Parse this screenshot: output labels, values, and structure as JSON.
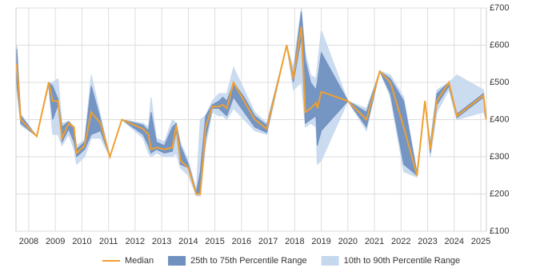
{
  "chart_data": {
    "type": "percentile-band",
    "x": [
      2007.55,
      2007.7,
      2008.3,
      2008.75,
      2008.9,
      2009.1,
      2009.25,
      2009.5,
      2009.7,
      2009.8,
      2010.1,
      2010.35,
      2010.7,
      2011.05,
      2011.5,
      2012.3,
      2012.5,
      2012.6,
      2012.8,
      2013.1,
      2013.4,
      2013.55,
      2013.7,
      2014.0,
      2014.3,
      2014.45,
      2014.65,
      2014.9,
      2015.15,
      2015.3,
      2015.45,
      2015.7,
      2016.1,
      2016.5,
      2016.95,
      2017.7,
      2017.95,
      2018.25,
      2018.4,
      2018.6,
      2018.8,
      2018.85,
      2019.0,
      2020.0,
      2020.7,
      2021.2,
      2021.6,
      2022.1,
      2022.6,
      2022.9,
      2023.1,
      2023.35,
      2023.8,
      2024.1,
      2025.1,
      2025.2
    ],
    "series": [
      {
        "name": "Median",
        "color": "#f0a030",
        "values": [
          550,
          400,
          355,
          500,
          450,
          450,
          350,
          390,
          380,
          310,
          330,
          420,
          390,
          300,
          400,
          375,
          360,
          320,
          325,
          320,
          325,
          385,
          290,
          270,
          200,
          200,
          380,
          435,
          435,
          440,
          430,
          500,
          450,
          400,
          375,
          600,
          510,
          650,
          420,
          430,
          445,
          430,
          475,
          450,
          400,
          530,
          500,
          380,
          250,
          450,
          320,
          450,
          500,
          410,
          465,
          400
        ]
      },
      {
        "name": "25th to 75th Percentile Range",
        "color": "#7090c0",
        "low": [
          500,
          390,
          355,
          495,
          400,
          440,
          340,
          375,
          340,
          300,
          320,
          360,
          370,
          300,
          400,
          360,
          330,
          310,
          320,
          310,
          315,
          370,
          280,
          270,
          200,
          200,
          350,
          430,
          430,
          420,
          410,
          460,
          420,
          380,
          365,
          600,
          500,
          620,
          390,
          400,
          410,
          330,
          370,
          450,
          380,
          530,
          470,
          280,
          250,
          450,
          310,
          440,
          490,
          405,
          460,
          400
        ],
        "high": [
          590,
          410,
          355,
          500,
          490,
          455,
          380,
          395,
          380,
          320,
          340,
          490,
          400,
          300,
          400,
          385,
          370,
          420,
          340,
          330,
          380,
          390,
          330,
          280,
          205,
          260,
          410,
          440,
          450,
          460,
          450,
          500,
          460,
          410,
          385,
          600,
          520,
          690,
          560,
          500,
          480,
          500,
          580,
          450,
          420,
          530,
          510,
          450,
          255,
          450,
          330,
          470,
          500,
          415,
          470,
          400
        ]
      },
      {
        "name": "10th to 90th Percentile Range",
        "color": "#c6d8ee",
        "low": [
          480,
          385,
          355,
          490,
          360,
          360,
          330,
          360,
          320,
          280,
          300,
          350,
          350,
          300,
          400,
          350,
          310,
          300,
          310,
          300,
          300,
          310,
          270,
          250,
          195,
          195,
          330,
          420,
          410,
          410,
          400,
          430,
          400,
          370,
          360,
          600,
          480,
          500,
          380,
          390,
          380,
          280,
          290,
          450,
          370,
          530,
          460,
          260,
          245,
          450,
          300,
          420,
          480,
          400,
          420,
          400
        ],
        "high": [
          600,
          415,
          355,
          500,
          500,
          510,
          390,
          395,
          380,
          330,
          345,
          520,
          410,
          300,
          400,
          390,
          380,
          460,
          350,
          340,
          400,
          390,
          340,
          290,
          210,
          400,
          410,
          450,
          470,
          470,
          470,
          540,
          480,
          420,
          390,
          600,
          540,
          700,
          580,
          520,
          510,
          540,
          640,
          450,
          430,
          530,
          520,
          460,
          260,
          450,
          340,
          480,
          500,
          520,
          480,
          400
        ]
      }
    ],
    "xlim": [
      2007.52,
      2025.21
    ],
    "xticks": [
      2008,
      2009,
      2010,
      2011,
      2012,
      2013,
      2014,
      2015,
      2016,
      2017,
      2018,
      2019,
      2020,
      2021,
      2022,
      2023,
      2024,
      2025
    ],
    "ylim": [
      100,
      700
    ],
    "yticks": [
      {
        "value": 100,
        "label": "£100"
      },
      {
        "value": 200,
        "label": "£200"
      },
      {
        "value": 300,
        "label": "£300"
      },
      {
        "value": 400,
        "label": "£400"
      },
      {
        "value": 500,
        "label": "£500"
      },
      {
        "value": 600,
        "label": "£600"
      },
      {
        "value": 700,
        "label": "£700"
      }
    ],
    "grid": true
  }
}
